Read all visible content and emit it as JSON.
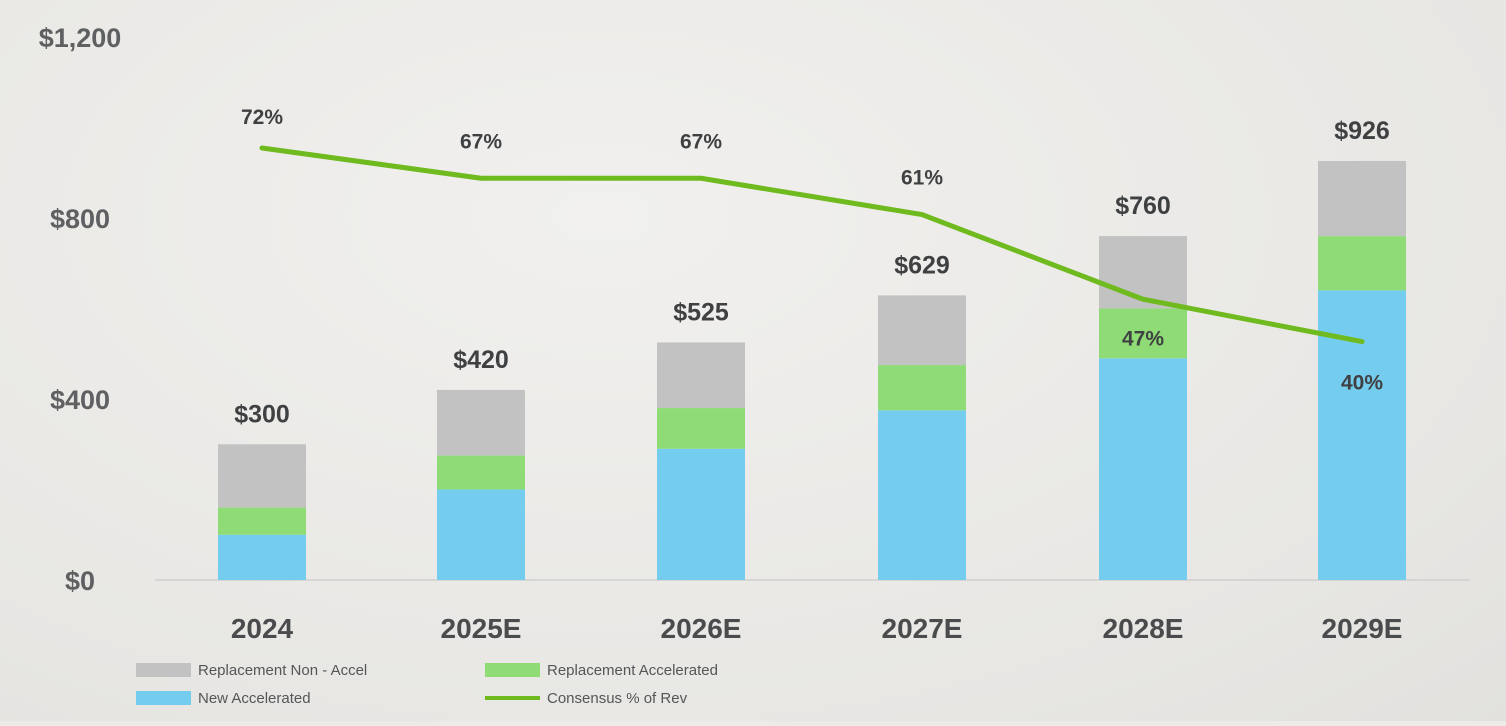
{
  "chart_data": {
    "type": "bar",
    "stacked": true,
    "categories": [
      "2024",
      "2025E",
      "2026E",
      "2027E",
      "2028E",
      "2029E"
    ],
    "y_axis": {
      "ylim": [
        0,
        1200
      ],
      "ticks": [
        0,
        400,
        800,
        1200
      ],
      "tick_labels": [
        "$0",
        "$400",
        "$800",
        "$1,200"
      ]
    },
    "series": [
      {
        "name": "New Accelerated",
        "color": "#74cdee",
        "values": [
          100,
          200,
          290,
          375,
          490,
          640
        ]
      },
      {
        "name": "Replacement Accelerated",
        "color": "#8fdc76",
        "values": [
          60,
          75,
          90,
          100,
          110,
          120
        ]
      },
      {
        "name": "Replacement Non - Accel",
        "color": "#c2c2c2",
        "values": [
          140,
          145,
          145,
          154,
          160,
          166
        ]
      }
    ],
    "totals": [
      300,
      420,
      525,
      629,
      760,
      926
    ],
    "total_labels": [
      "$300",
      "$420",
      "$525",
      "$629",
      "$760",
      "$926"
    ],
    "line_series": {
      "name": "Consensus % of Rev",
      "color": "#6fba1e",
      "values": [
        72,
        67,
        67,
        61,
        47,
        40
      ],
      "labels": [
        "72%",
        "67%",
        "67%",
        "61%",
        "47%",
        "40%"
      ]
    },
    "legend": {
      "placement": "bottom-left",
      "items": [
        {
          "label": "Replacement Non - Accel",
          "color": "#c2c2c2",
          "kind": "box"
        },
        {
          "label": "Replacement Accelerated",
          "color": "#8fdc76",
          "kind": "box"
        },
        {
          "label": "New Accelerated",
          "color": "#74cdee",
          "kind": "box"
        },
        {
          "label": "Consensus % of Rev",
          "color": "#6fba1e",
          "kind": "line"
        }
      ]
    },
    "grid": false
  }
}
